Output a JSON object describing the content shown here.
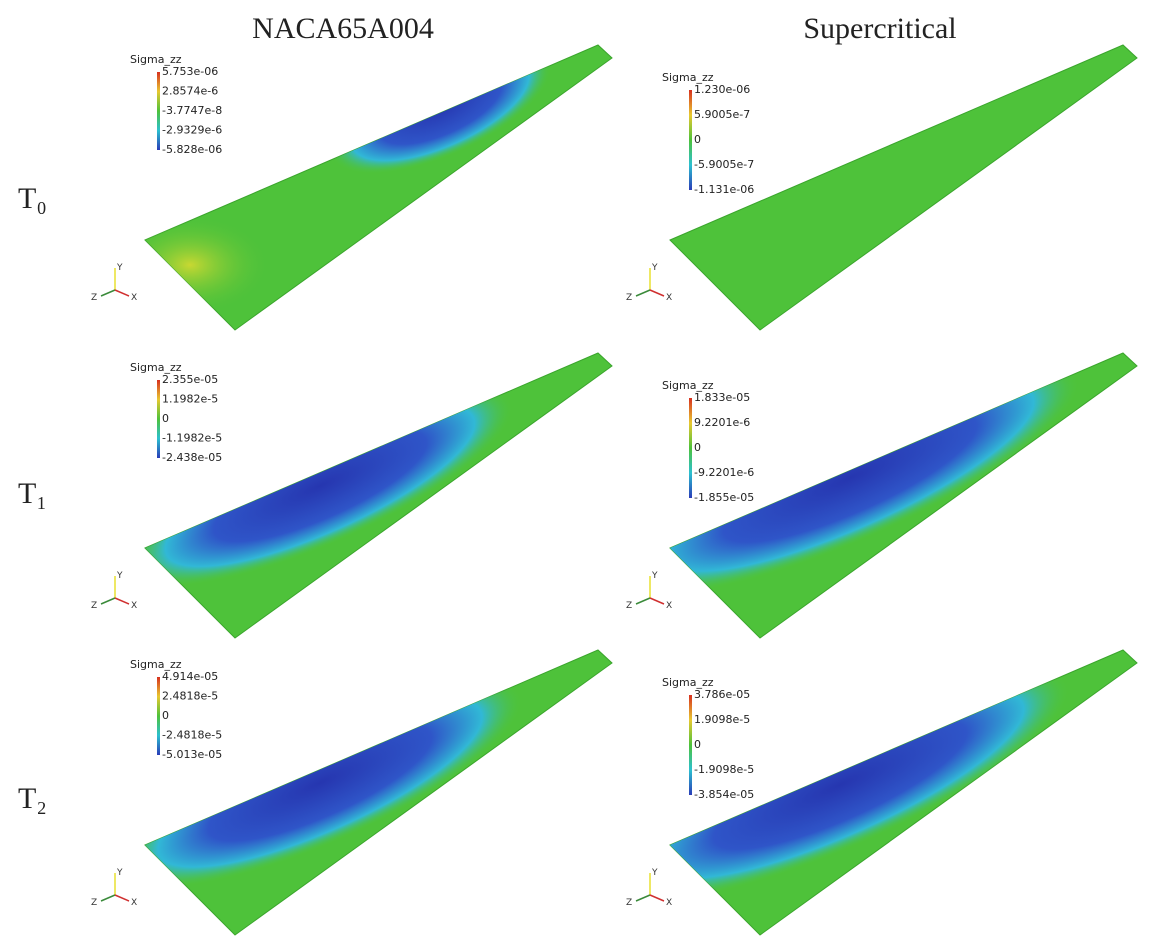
{
  "columns": [
    "NACA65A004",
    "Supercritical"
  ],
  "rows": [
    "T₀",
    "T₁",
    "T₂"
  ],
  "triad_labels": [
    "Y",
    "Z",
    "X"
  ],
  "panels": [
    {
      "legend_title": "Sigma_zz",
      "legend_labels": [
        "5.753e-06",
        "2.8574e-6",
        "-3.7747e-8",
        "-2.9329e-6",
        "-5.828e-06"
      ]
    },
    {
      "legend_title": "Sigma_zz",
      "legend_labels": [
        "1.230e-06",
        "5.9005e-7",
        "0",
        "-5.9005e-7",
        "-1.131e-06"
      ]
    },
    {
      "legend_title": "Sigma_zz",
      "legend_labels": [
        "2.355e-05",
        "1.1982e-5",
        "0",
        "-1.1982e-5",
        "-2.438e-05"
      ]
    },
    {
      "legend_title": "Sigma_zz",
      "legend_labels": [
        "1.833e-05",
        "9.2201e-6",
        "0",
        "-9.2201e-6",
        "-1.855e-05"
      ]
    },
    {
      "legend_title": "Sigma_zz",
      "legend_labels": [
        "4.914e-05",
        "2.4818e-5",
        "0",
        "-2.4818e-5",
        "-5.013e-05"
      ]
    },
    {
      "legend_title": "Sigma_zz",
      "legend_labels": [
        "3.786e-05",
        "1.9098e-5",
        "0",
        "-1.9098e-5",
        "-3.854e-05"
      ]
    }
  ]
}
